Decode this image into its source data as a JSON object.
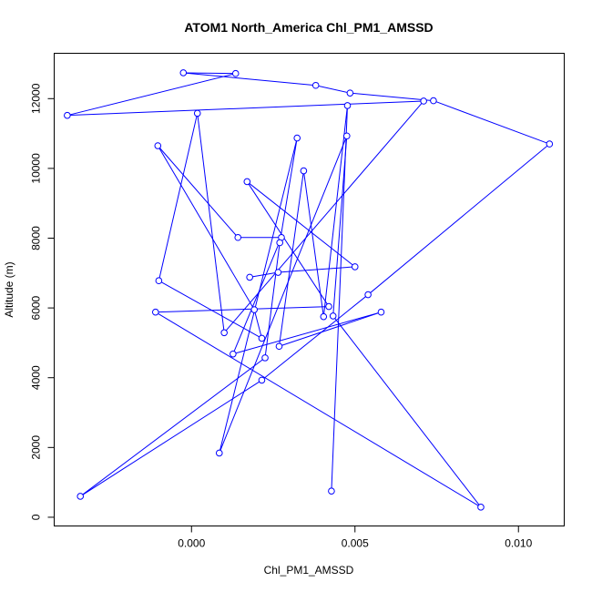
{
  "chart_data": {
    "type": "line",
    "title": "ATOM1 North_America Chl_PM1_AMSSD",
    "xlabel": "Chl_PM1_AMSSD",
    "ylabel": "Altitude (m)",
    "xlim": [
      -0.0042,
      0.0114
    ],
    "ylim": [
      -250,
      13300
    ],
    "x_ticks": [
      0.0,
      0.005,
      0.01
    ],
    "x_tick_labels": [
      "0.000",
      "0.005",
      "0.010"
    ],
    "y_ticks": [
      0,
      2000,
      4000,
      6000,
      8000,
      10000,
      12000
    ],
    "y_tick_labels": [
      "0",
      "2000",
      "4000",
      "6000",
      "8000",
      "10000",
      "12000"
    ],
    "grid": false,
    "legend": "none",
    "color": "#0000ff",
    "marker": "open-circle",
    "points": [
      {
        "x": 0.00428,
        "y": 750
      },
      {
        "x": 0.00477,
        "y": 11800
      },
      {
        "x": 0.00404,
        "y": 5750
      },
      {
        "x": 0.00343,
        "y": 9930
      },
      {
        "x": 0.00268,
        "y": 4900
      },
      {
        "x": 0.0058,
        "y": 5880
      },
      {
        "x": 0.00127,
        "y": 4680
      },
      {
        "x": 0.00275,
        "y": 8020
      },
      {
        "x": 0.00142,
        "y": 8020
      },
      {
        "x": -0.00103,
        "y": 10650
      },
      {
        "x": 0.00192,
        "y": 5950
      },
      {
        "x": 0.00215,
        "y": 5130
      },
      {
        "x": -0.001,
        "y": 6780
      },
      {
        "x": 0.00018,
        "y": 11580
      },
      {
        "x": 0.001,
        "y": 5290
      },
      {
        "x": 0.0071,
        "y": 11930
      },
      {
        "x": -0.0038,
        "y": 11520
      },
      {
        "x": 0.00135,
        "y": 12720
      },
      {
        "x": -0.00025,
        "y": 12740
      },
      {
        "x": 0.0038,
        "y": 12380
      },
      {
        "x": 0.00485,
        "y": 12160
      },
      {
        "x": 0.0074,
        "y": 11940
      },
      {
        "x": 0.01095,
        "y": 10700
      },
      {
        "x": 0.0054,
        "y": 6380
      },
      {
        "x": 0.00215,
        "y": 3930
      },
      {
        "x": -0.0034,
        "y": 600
      },
      {
        "x": 0.00225,
        "y": 4570
      },
      {
        "x": 0.0027,
        "y": 7870
      },
      {
        "x": 0.00323,
        "y": 10870
      },
      {
        "x": 0.00085,
        "y": 1840
      },
      {
        "x": 0.00475,
        "y": 10930
      },
      {
        "x": 0.00433,
        "y": 5770
      },
      {
        "x": 0.00885,
        "y": 290
      },
      {
        "x": -0.0011,
        "y": 5880
      },
      {
        "x": 0.0042,
        "y": 6040
      },
      {
        "x": 0.0017,
        "y": 9620
      },
      {
        "x": 0.005,
        "y": 7180
      },
      {
        "x": 0.00265,
        "y": 7020
      },
      {
        "x": 0.00178,
        "y": 6880
      }
    ]
  }
}
